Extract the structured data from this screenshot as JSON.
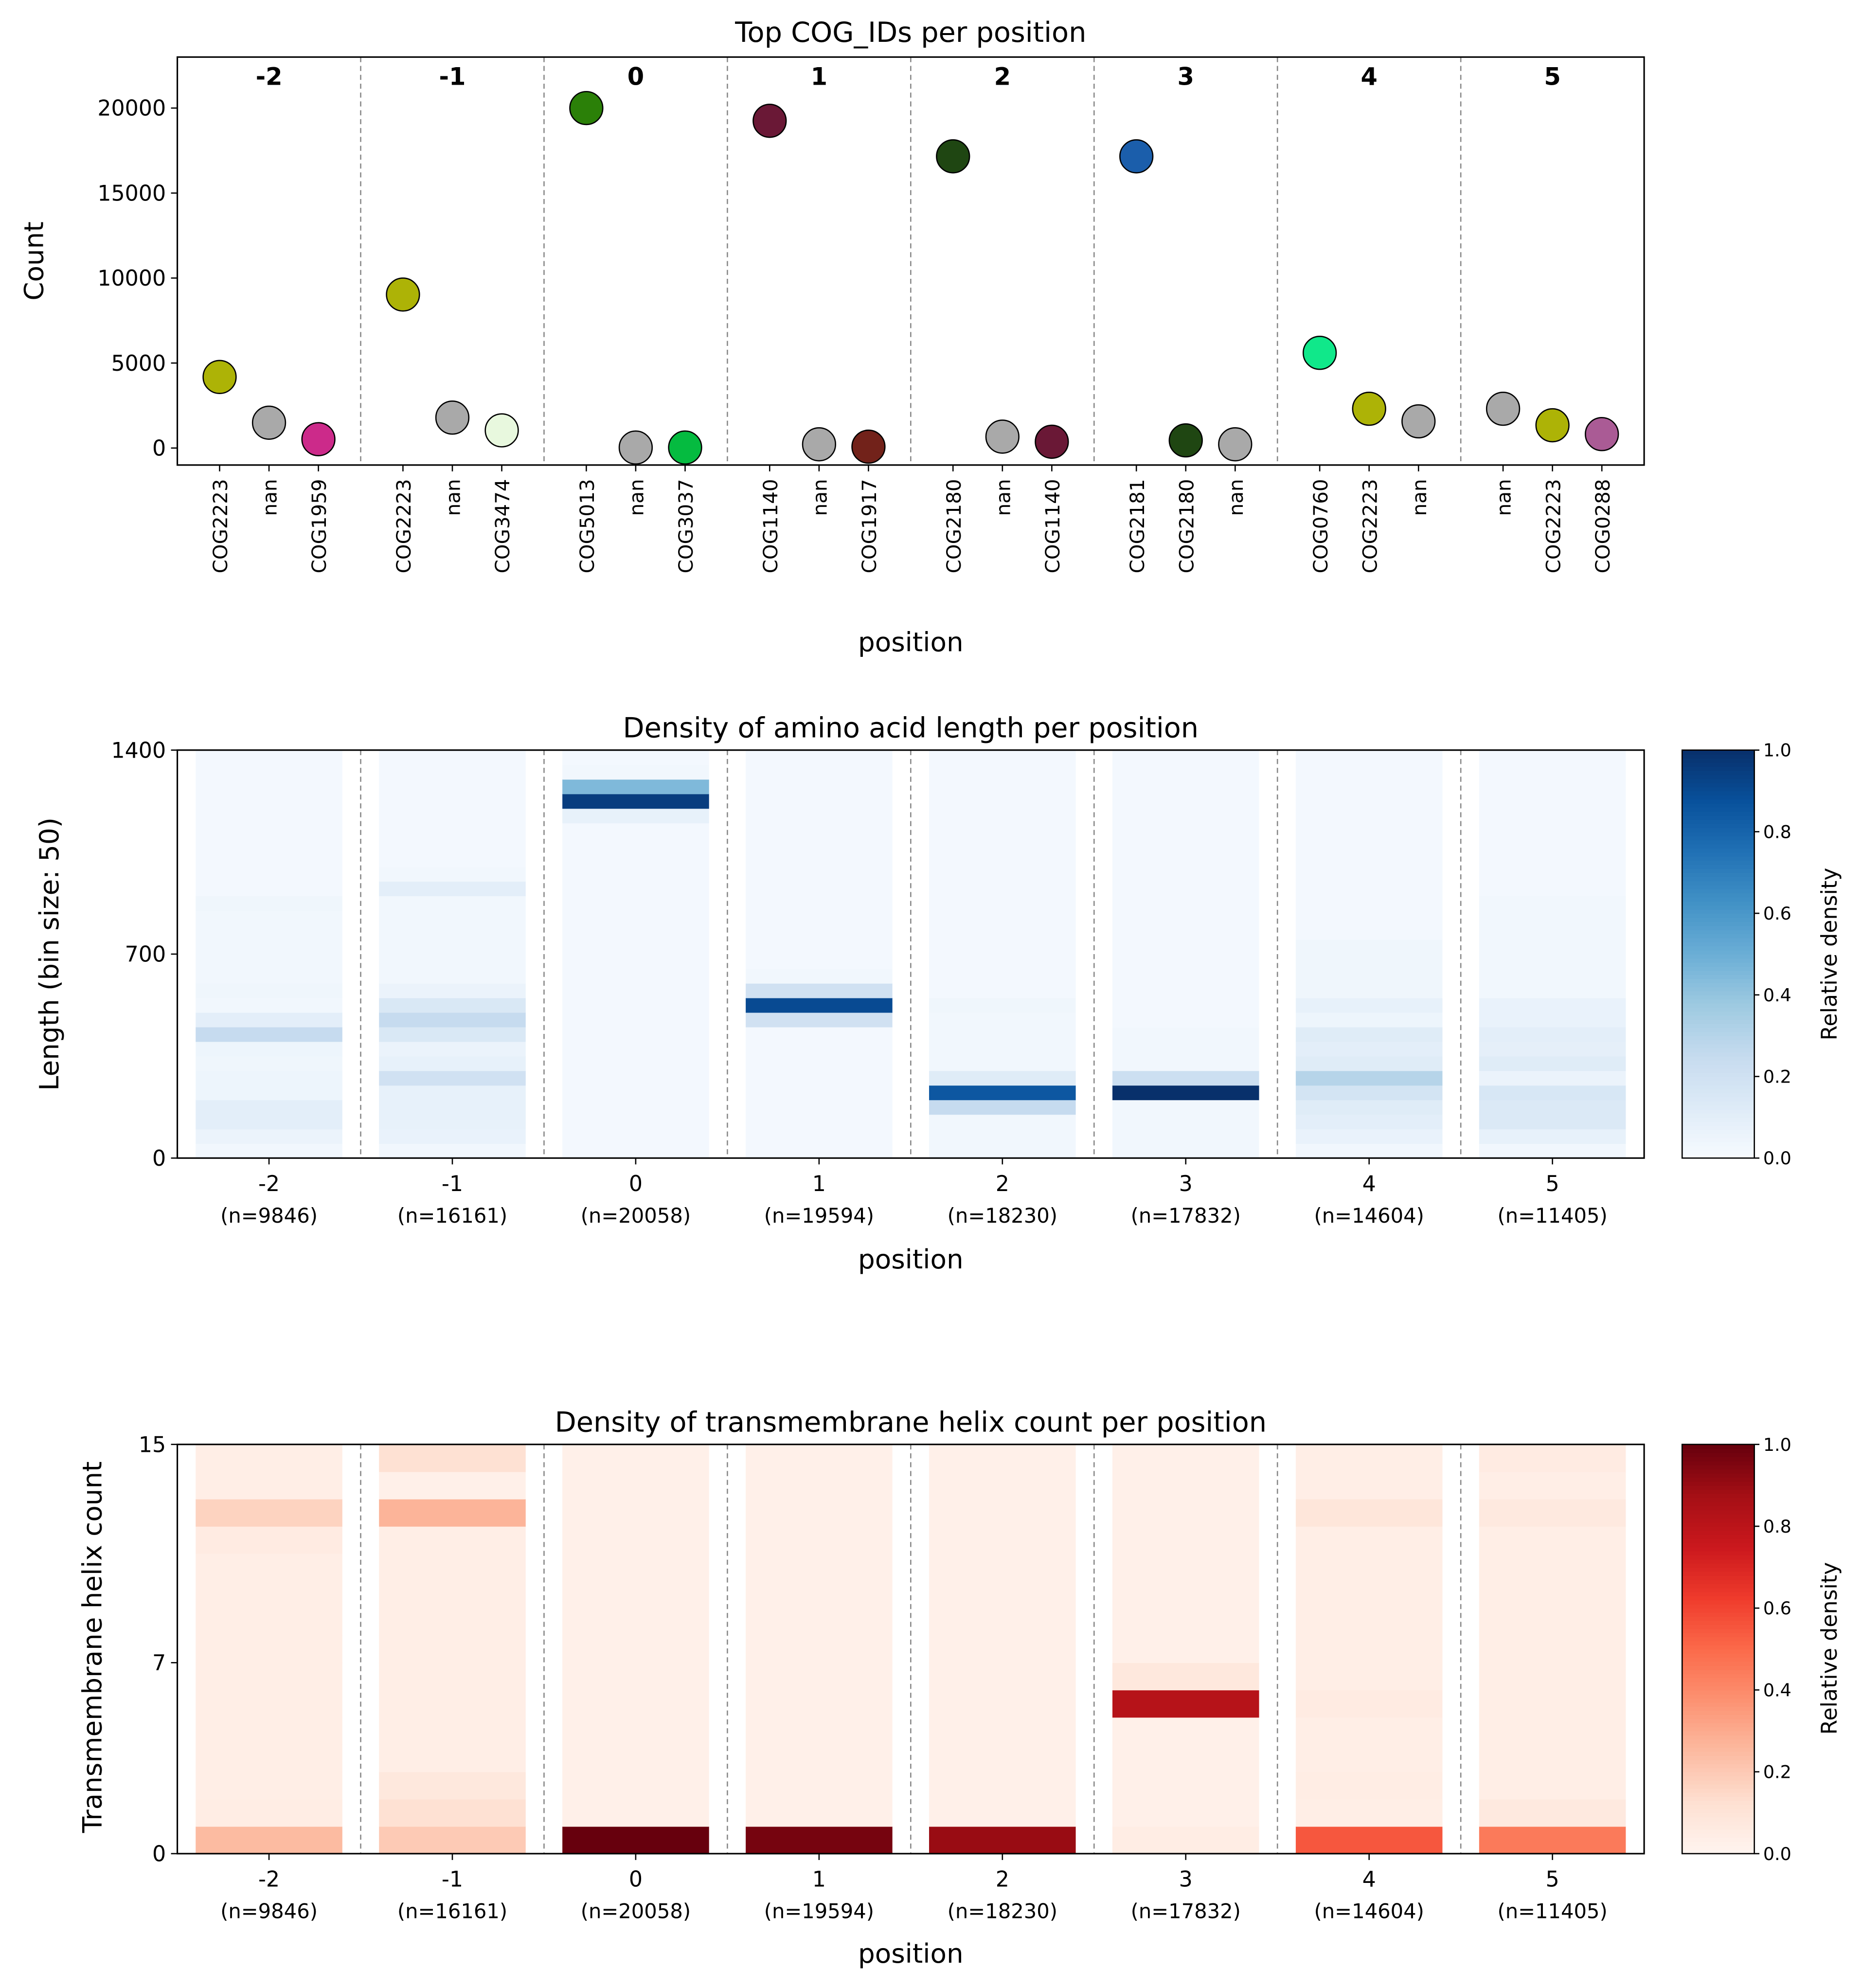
{
  "chart_data": [
    {
      "type": "scatter",
      "title": "Top COG_IDs per position",
      "xlabel": "position",
      "ylabel": "Count",
      "ylim": [
        -1000,
        23000
      ],
      "yticks": [
        0,
        5000,
        10000,
        15000,
        20000
      ],
      "grid": false,
      "positions": [
        {
          "position": "-2",
          "points": [
            {
              "label": "COG2223",
              "count": 4180,
              "color": "#adb306"
            },
            {
              "label": "nan",
              "count": 1490,
              "color": "#a9a9a9"
            },
            {
              "label": "COG1959",
              "count": 520,
              "color": "#cc2a8a"
            }
          ]
        },
        {
          "position": "-1",
          "points": [
            {
              "label": "COG2223",
              "count": 9030,
              "color": "#adb306"
            },
            {
              "label": "nan",
              "count": 1790,
              "color": "#a9a9a9"
            },
            {
              "label": "COG3474",
              "count": 1040,
              "color": "#e8f8de"
            }
          ]
        },
        {
          "position": "0",
          "points": [
            {
              "label": "COG5013",
              "count": 20000,
              "color": "#2b8008"
            },
            {
              "label": "nan",
              "count": 30,
              "color": "#a9a9a9"
            },
            {
              "label": "COG3037",
              "count": 30,
              "color": "#05bb40"
            }
          ]
        },
        {
          "position": "1",
          "points": [
            {
              "label": "COG1140",
              "count": 19250,
              "color": "#6a1836"
            },
            {
              "label": "nan",
              "count": 220,
              "color": "#a9a9a9"
            },
            {
              "label": "COG1917",
              "count": 80,
              "color": "#72221a"
            }
          ]
        },
        {
          "position": "2",
          "points": [
            {
              "label": "COG2180",
              "count": 17160,
              "color": "#1f4612"
            },
            {
              "label": "nan",
              "count": 670,
              "color": "#a9a9a9"
            },
            {
              "label": "COG1140",
              "count": 370,
              "color": "#6a1836"
            }
          ]
        },
        {
          "position": "3",
          "points": [
            {
              "label": "COG2181",
              "count": 17160,
              "color": "#1b5eab"
            },
            {
              "label": "COG2180",
              "count": 450,
              "color": "#1f4612"
            },
            {
              "label": "nan",
              "count": 220,
              "color": "#a9a9a9"
            }
          ]
        },
        {
          "position": "4",
          "points": [
            {
              "label": "COG0760",
              "count": 5600,
              "color": "#10e88a"
            },
            {
              "label": "COG2223",
              "count": 2310,
              "color": "#adb306"
            },
            {
              "label": "nan",
              "count": 1570,
              "color": "#a9a9a9"
            }
          ]
        },
        {
          "position": "5",
          "points": [
            {
              "label": "nan",
              "count": 2310,
              "color": "#a9a9a9"
            },
            {
              "label": "COG2223",
              "count": 1340,
              "color": "#adb306"
            },
            {
              "label": "COG0288",
              "count": 820,
              "color": "#aa5b95"
            }
          ]
        }
      ]
    },
    {
      "type": "heatmap",
      "title": "Density of amino acid length per position",
      "xlabel": "position",
      "ylabel": "Length (bin size: 50)",
      "ylim": [
        0,
        1400
      ],
      "yticks": [
        "0",
        "700",
        "1400"
      ],
      "bin_size": 50,
      "colormap": "Blues",
      "colorbar_label": "Relative density",
      "colorbar_ticks": [
        "0.0",
        "0.2",
        "0.4",
        "0.6",
        "0.8",
        "1.0"
      ],
      "categories": [
        "-2",
        "-1",
        "0",
        "1",
        "2",
        "3",
        "4",
        "5"
      ],
      "counts": [
        "(n=9846)",
        "(n=16161)",
        "(n=20058)",
        "(n=19594)",
        "(n=18230)",
        "(n=17832)",
        "(n=14604)",
        "(n=11405)"
      ],
      "values": [
        [
          0.03,
          0.06,
          0.1,
          0.1,
          0.05,
          0.05,
          0.04,
          0.05,
          0.25,
          0.1,
          0.03,
          0.04,
          0.03,
          0.03,
          0.03,
          0.03,
          0.03,
          0.04,
          0.02,
          0.02,
          0.02,
          0.02,
          0.02,
          0.02,
          0.02,
          0.02,
          0.02,
          0.02
        ],
        [
          0.03,
          0.07,
          0.08,
          0.08,
          0.08,
          0.2,
          0.08,
          0.06,
          0.15,
          0.25,
          0.15,
          0.06,
          0.03,
          0.03,
          0.03,
          0.03,
          0.03,
          0.03,
          0.1,
          0.03,
          0.02,
          0.02,
          0.02,
          0.02,
          0.02,
          0.02,
          0.02,
          0.02
        ],
        [
          0.02,
          0.02,
          0.02,
          0.02,
          0.02,
          0.02,
          0.02,
          0.02,
          0.02,
          0.02,
          0.02,
          0.02,
          0.02,
          0.02,
          0.02,
          0.02,
          0.02,
          0.02,
          0.02,
          0.02,
          0.02,
          0.02,
          0.02,
          0.08,
          0.95,
          0.45,
          0.03,
          0.02
        ],
        [
          0.02,
          0.02,
          0.02,
          0.02,
          0.02,
          0.02,
          0.02,
          0.02,
          0.02,
          0.2,
          0.9,
          0.2,
          0.03,
          0.02,
          0.02,
          0.02,
          0.02,
          0.02,
          0.02,
          0.02,
          0.02,
          0.02,
          0.02,
          0.02,
          0.02,
          0.02,
          0.02,
          0.02
        ],
        [
          0.03,
          0.03,
          0.03,
          0.25,
          0.85,
          0.12,
          0.03,
          0.03,
          0.03,
          0.03,
          0.04,
          0.02,
          0.02,
          0.02,
          0.02,
          0.02,
          0.02,
          0.02,
          0.02,
          0.02,
          0.02,
          0.02,
          0.02,
          0.02,
          0.02,
          0.02,
          0.02,
          0.02
        ],
        [
          0.03,
          0.03,
          0.03,
          0.03,
          1.0,
          0.22,
          0.03,
          0.03,
          0.03,
          0.02,
          0.02,
          0.02,
          0.02,
          0.02,
          0.02,
          0.02,
          0.02,
          0.02,
          0.02,
          0.02,
          0.02,
          0.02,
          0.02,
          0.02,
          0.02,
          0.02,
          0.02,
          0.02
        ],
        [
          0.03,
          0.07,
          0.1,
          0.12,
          0.18,
          0.3,
          0.12,
          0.1,
          0.12,
          0.05,
          0.08,
          0.04,
          0.04,
          0.04,
          0.04,
          0.02,
          0.02,
          0.02,
          0.02,
          0.02,
          0.02,
          0.02,
          0.02,
          0.02,
          0.02,
          0.02,
          0.02,
          0.02
        ],
        [
          0.03,
          0.08,
          0.14,
          0.14,
          0.16,
          0.06,
          0.12,
          0.09,
          0.1,
          0.07,
          0.07,
          0.03,
          0.03,
          0.03,
          0.03,
          0.03,
          0.03,
          0.03,
          0.02,
          0.02,
          0.02,
          0.02,
          0.02,
          0.02,
          0.02,
          0.02,
          0.02,
          0.02
        ]
      ]
    },
    {
      "type": "heatmap",
      "title": "Density of transmembrane helix count per position",
      "xlabel": "position",
      "ylabel": "Transmembrane helix count",
      "ylim": [
        0,
        15
      ],
      "yticks": [
        "0",
        "7",
        "15"
      ],
      "bin_size": 1,
      "colormap": "Reds",
      "colorbar_label": "Relative density",
      "colorbar_ticks": [
        "0.0",
        "0.2",
        "0.4",
        "0.6",
        "0.8",
        "1.0"
      ],
      "categories": [
        "-2",
        "-1",
        "0",
        "1",
        "2",
        "3",
        "4",
        "5"
      ],
      "counts": [
        "(n=9846)",
        "(n=16161)",
        "(n=20058)",
        "(n=19594)",
        "(n=18230)",
        "(n=17832)",
        "(n=14604)",
        "(n=11405)"
      ],
      "values": [
        [
          0.25,
          0.05,
          0.04,
          0.04,
          0.04,
          0.04,
          0.04,
          0.04,
          0.04,
          0.04,
          0.04,
          0.06,
          0.17,
          0.04,
          0.04
        ],
        [
          0.2,
          0.12,
          0.08,
          0.04,
          0.04,
          0.04,
          0.04,
          0.04,
          0.04,
          0.04,
          0.04,
          0.04,
          0.27,
          0.03,
          0.12
        ],
        [
          1.0,
          0.03,
          0.03,
          0.03,
          0.03,
          0.03,
          0.03,
          0.03,
          0.03,
          0.03,
          0.03,
          0.03,
          0.03,
          0.03,
          0.03
        ],
        [
          0.97,
          0.03,
          0.03,
          0.03,
          0.03,
          0.03,
          0.03,
          0.03,
          0.03,
          0.03,
          0.03,
          0.03,
          0.03,
          0.03,
          0.03
        ],
        [
          0.9,
          0.03,
          0.03,
          0.03,
          0.03,
          0.03,
          0.03,
          0.03,
          0.03,
          0.03,
          0.03,
          0.03,
          0.03,
          0.03,
          0.03
        ],
        [
          0.05,
          0.03,
          0.03,
          0.03,
          0.03,
          0.82,
          0.08,
          0.03,
          0.03,
          0.03,
          0.03,
          0.03,
          0.03,
          0.03,
          0.03
        ],
        [
          0.55,
          0.04,
          0.05,
          0.04,
          0.04,
          0.06,
          0.04,
          0.04,
          0.04,
          0.04,
          0.04,
          0.04,
          0.09,
          0.04,
          0.04
        ],
        [
          0.45,
          0.07,
          0.04,
          0.04,
          0.04,
          0.04,
          0.04,
          0.04,
          0.04,
          0.04,
          0.04,
          0.04,
          0.07,
          0.04,
          0.06
        ]
      ]
    }
  ]
}
